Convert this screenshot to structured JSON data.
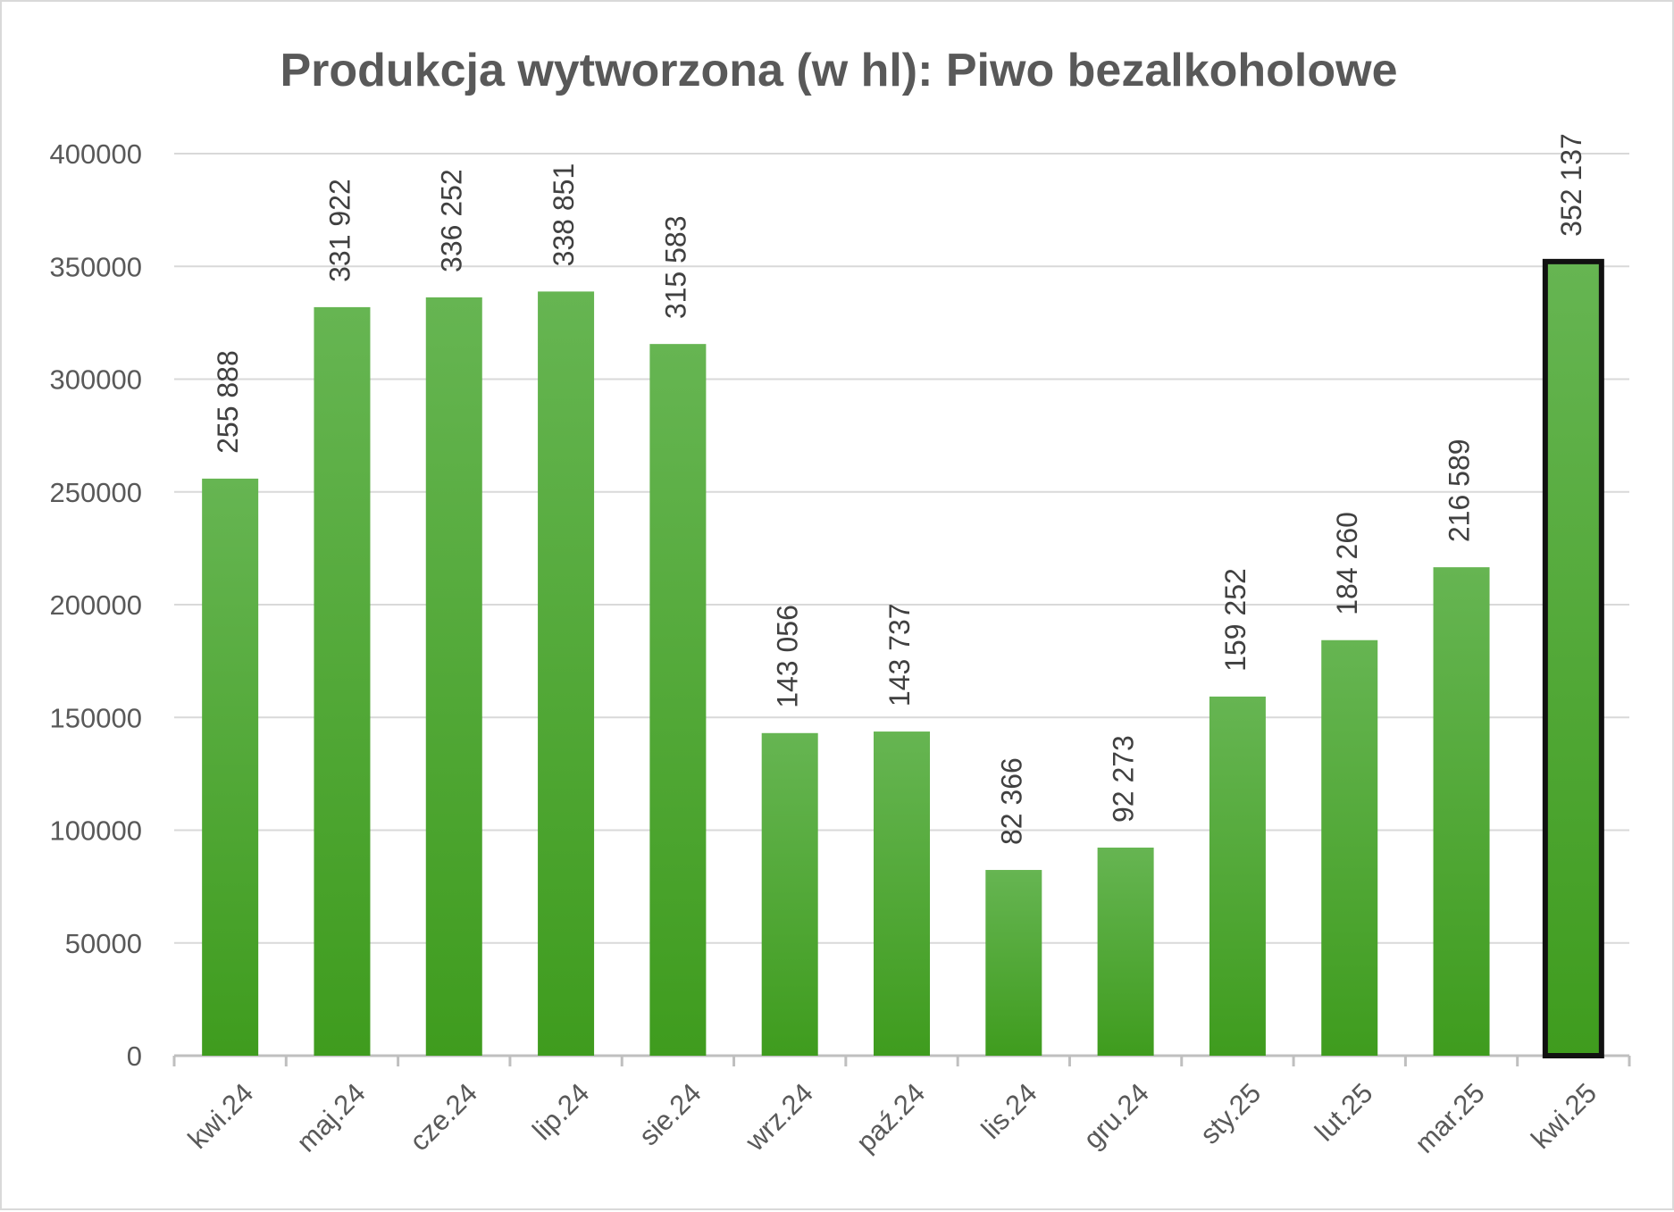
{
  "chart_data": {
    "type": "bar",
    "title": "Produkcja wytworzona (w hl): Piwo bezalkoholowe",
    "xlabel": "",
    "ylabel": "",
    "categories": [
      "kwi.24",
      "maj.24",
      "cze.24",
      "lip.24",
      "sie.24",
      "wrz.24",
      "paź.24",
      "lis.24",
      "gru.24",
      "sty.25",
      "lut.25",
      "mar.25",
      "kwi.25"
    ],
    "values": [
      255888,
      331922,
      336252,
      338851,
      315583,
      143056,
      143737,
      82366,
      92273,
      159252,
      184260,
      216589,
      352137
    ],
    "data_labels": [
      "255 888",
      "331 922",
      "336 252",
      "338 851",
      "315 583",
      "143 056",
      "143 737",
      "82 366",
      "92 273",
      "159 252",
      "184 260",
      "216 589",
      "352 137"
    ],
    "ylim": [
      0,
      400000
    ],
    "yticks": [
      0,
      50000,
      100000,
      150000,
      200000,
      250000,
      300000,
      350000,
      400000
    ],
    "ytick_labels": [
      "0",
      "50000",
      "100000",
      "150000",
      "200000",
      "250000",
      "300000",
      "350000",
      "400000"
    ],
    "highlighted_category": "kwi.25",
    "grid": true,
    "legend": "none",
    "colors": {
      "bar_top": "#66b552",
      "bar_bottom": "#3f9c1e",
      "highlight_border": "#111111",
      "gridline": "#d9d9d9",
      "axis": "#bfbfbf",
      "text": "#595959"
    }
  }
}
